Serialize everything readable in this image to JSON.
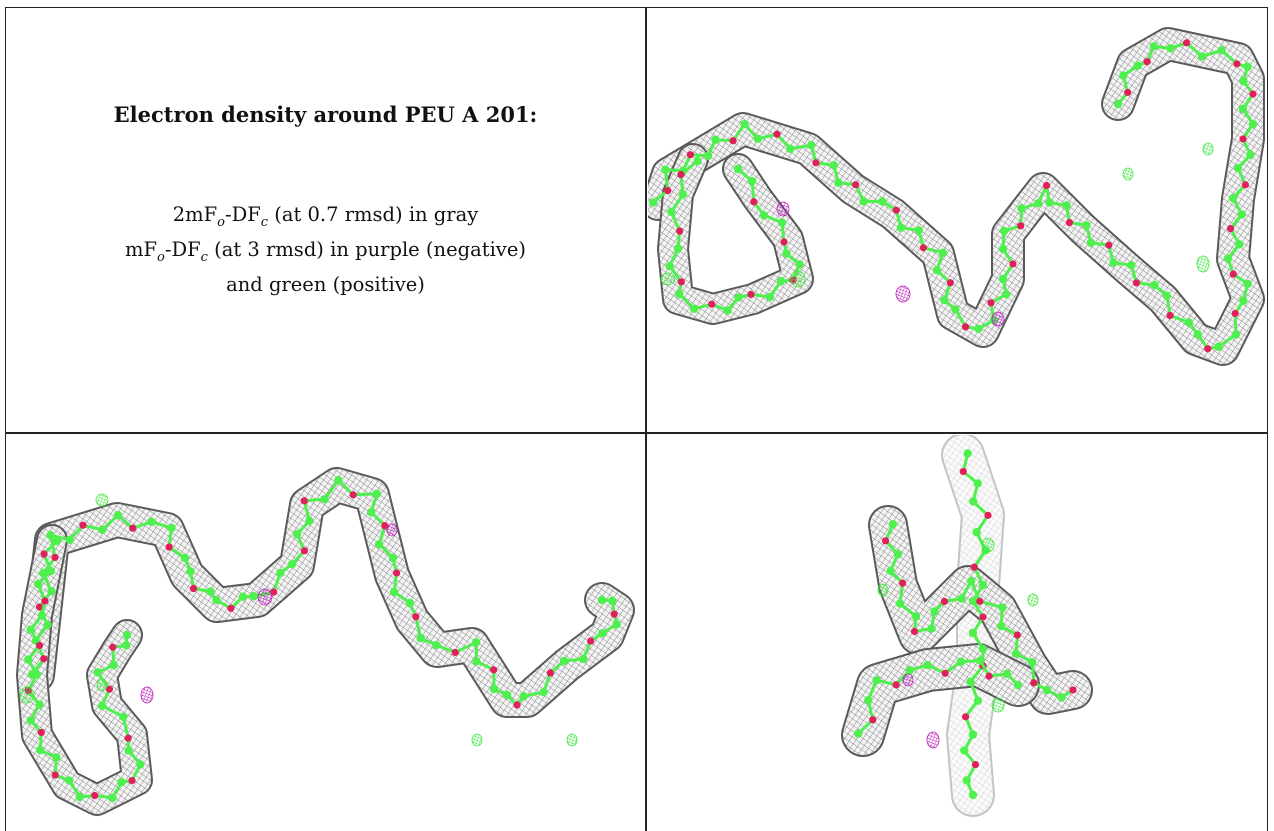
{
  "caption": {
    "title": "Electron density around PEU A 201:",
    "line1": {
      "pre": "2mF",
      "sub_o": "o",
      "mid": "-DF",
      "sub_c": "c",
      "post": " (at 0.7 rmsd) in gray"
    },
    "line2": {
      "pre": "mF",
      "sub_o": "o",
      "mid": "-DF",
      "sub_c": "c",
      "post": " (at 3 rmsd) in purple (negative)"
    },
    "line3": "and green (positive)"
  },
  "colors": {
    "density_2fofc": "#8a8a8a",
    "fofc_negative": "#c020c0",
    "fofc_positive": "#3ee83e",
    "ligand_oxygen": "#e0205a",
    "ligand_carbon": "#4ef04e"
  },
  "panels": [
    {
      "name": "view-1",
      "content": "electron-density-map"
    },
    {
      "name": "view-2",
      "content": "electron-density-map"
    },
    {
      "name": "view-3",
      "content": "electron-density-map"
    }
  ]
}
